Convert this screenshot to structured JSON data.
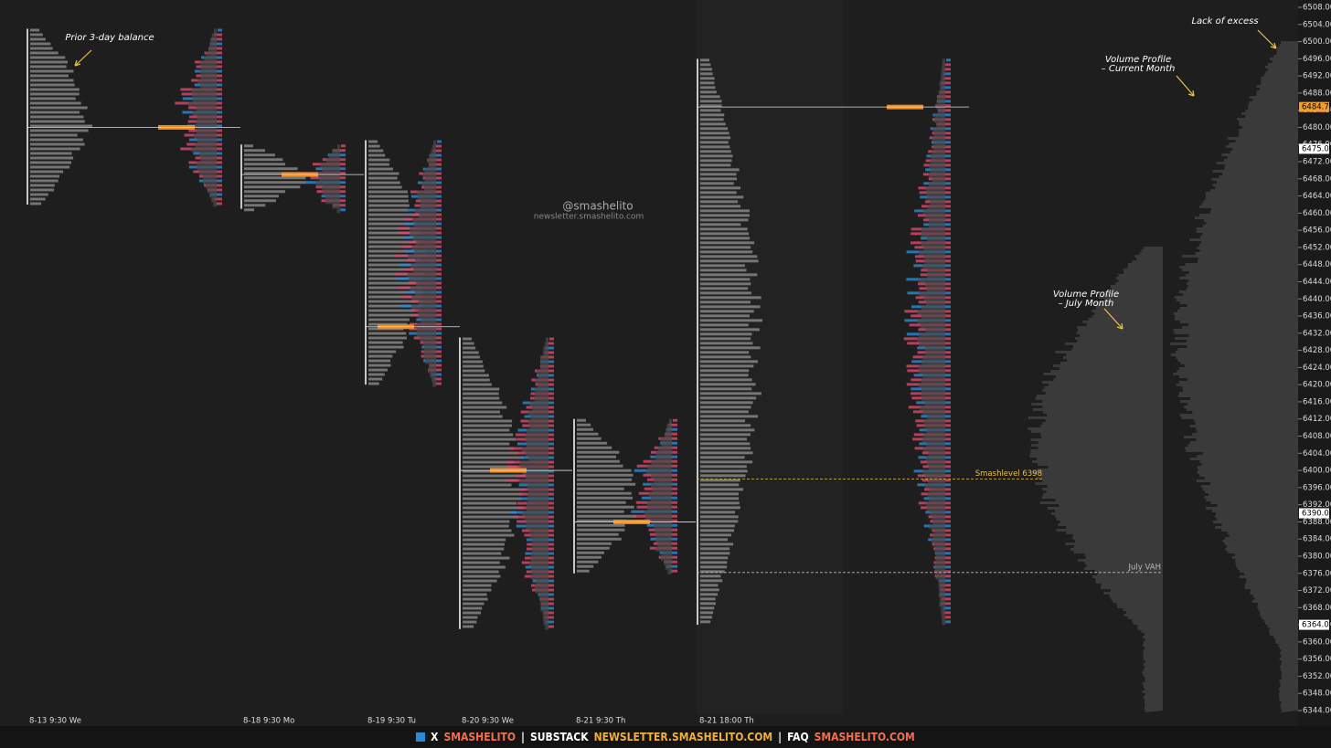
{
  "chart_data": {
    "type": "market-profile",
    "watermark": "@smashelito",
    "watermark_sub": "newsletter.smashelito.com",
    "ylim": [
      6344,
      6508
    ],
    "yticks": [
      {
        "value": 6344,
        "label": "6344.00"
      },
      {
        "value": 6348,
        "label": "6348.00"
      },
      {
        "value": 6352,
        "label": "6352.00"
      },
      {
        "value": 6356,
        "label": "6356.00"
      },
      {
        "value": 6360,
        "label": "6360.00"
      },
      {
        "value": 6364,
        "label": "6364.00"
      },
      {
        "value": 6368,
        "label": "6368.00"
      },
      {
        "value": 6372,
        "label": "6372.00"
      },
      {
        "value": 6376,
        "label": "6376.00"
      },
      {
        "value": 6380,
        "label": "6380.00"
      },
      {
        "value": 6384,
        "label": "6384.00"
      },
      {
        "value": 6388,
        "label": "6388.00"
      },
      {
        "value": 6392,
        "label": "6392.00"
      },
      {
        "value": 6396,
        "label": "6396.00"
      },
      {
        "value": 6400,
        "label": "6400.00"
      },
      {
        "value": 6404,
        "label": "6404.00"
      },
      {
        "value": 6408,
        "label": "6408.00"
      },
      {
        "value": 6412,
        "label": "6412.00"
      },
      {
        "value": 6416,
        "label": "6416.00"
      },
      {
        "value": 6420,
        "label": "6420.00"
      },
      {
        "value": 6424,
        "label": "6424.00"
      },
      {
        "value": 6428,
        "label": "6428.00"
      },
      {
        "value": 6432,
        "label": "6432.00"
      },
      {
        "value": 6436,
        "label": "6436.00"
      },
      {
        "value": 6440,
        "label": "6440.00"
      },
      {
        "value": 6444,
        "label": "6444.00"
      },
      {
        "value": 6448,
        "label": "6448.00"
      },
      {
        "value": 6452,
        "label": "6452.00"
      },
      {
        "value": 6456,
        "label": "6456.00"
      },
      {
        "value": 6460,
        "label": "6460.00"
      },
      {
        "value": 6464,
        "label": "6464.00"
      },
      {
        "value": 6468,
        "label": "6468.00"
      },
      {
        "value": 6472,
        "label": "6472.00"
      },
      {
        "value": 6476,
        "label": "6476.00"
      },
      {
        "value": 6480,
        "label": "6480.00"
      },
      {
        "value": 6484,
        "label": "6484.00"
      },
      {
        "value": 6488,
        "label": "6488.00"
      },
      {
        "value": 6492,
        "label": "6492.00"
      },
      {
        "value": 6496,
        "label": "6496.00"
      },
      {
        "value": 6500,
        "label": "6500.00"
      },
      {
        "value": 6504,
        "label": "6504.00"
      },
      {
        "value": 6508,
        "label": "6508.00"
      }
    ],
    "sessions": [
      {
        "name": "8-13  9:30 We",
        "high": 6503,
        "low": 6462,
        "poc": 6480
      },
      {
        "name": "8-18  9:30 Mo",
        "high": 6476,
        "low": 6461,
        "poc": 6469
      },
      {
        "name": "8-19  9:30 Tu",
        "high": 6477,
        "low": 6420,
        "poc": 6433.5
      },
      {
        "name": "8-20  9:30 We",
        "high": 6431,
        "low": 6363,
        "poc": 6400
      },
      {
        "name": "8-21  9:30 Th",
        "high": 6412,
        "low": 6376,
        "poc": 6388
      },
      {
        "name": "8-21  18:00 Th",
        "high": 6496,
        "low": 6364,
        "poc": 6484.75
      }
    ],
    "levels": [
      {
        "name": "Smashlevel 6398",
        "value": 6398,
        "color": "#e8c04a"
      },
      {
        "name": "July VAH",
        "value": 6376.2,
        "color": "#bbbbbb"
      }
    ],
    "price_tags": [
      {
        "value": 6484.75,
        "label": "6484.75",
        "color": "#f0a030"
      },
      {
        "value": 6475,
        "label": "6475.00",
        "color": "#ffffff"
      },
      {
        "value": 6390,
        "label": "6390.00",
        "color": "#ffffff"
      },
      {
        "value": 6364,
        "label": "6364.00",
        "color": "#ffffff"
      }
    ],
    "annotations": [
      "Prior 3-day balance",
      "Lack of excess",
      "Volume Profile",
      "– Current Month",
      "Volume Profile",
      "– July Month"
    ]
  },
  "footer": [
    "X",
    "SMASHELITO",
    "|",
    "SUBSTACK",
    "NEWSLETTER.SMASHELITO.COM",
    "|",
    "FAQ",
    "SMASHELITO.COM"
  ]
}
